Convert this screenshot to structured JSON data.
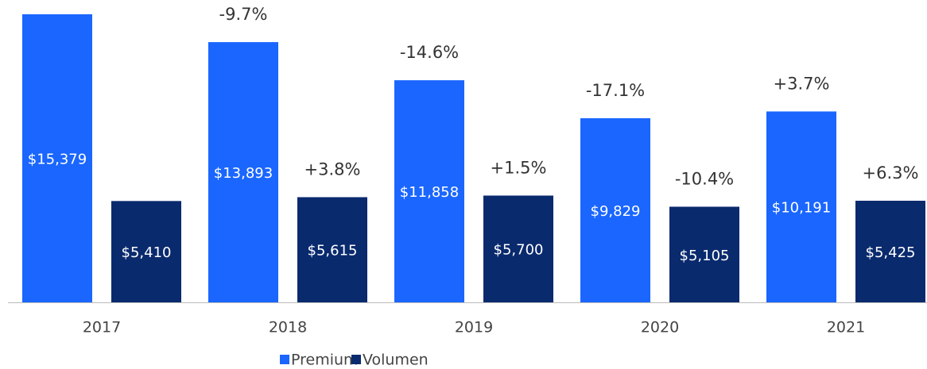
{
  "chart_data": {
    "type": "bar",
    "categories": [
      "2017",
      "2018",
      "2019",
      "2020",
      "2021"
    ],
    "series": [
      {
        "name": "Premium",
        "color": "#1a66ff",
        "values": [
          15379,
          13893,
          11858,
          9829,
          10191
        ],
        "value_labels": [
          "$15,379",
          "$13,893",
          "$11,858",
          "$9,829",
          "$10,191"
        ],
        "change_labels": [
          null,
          "-9.7%",
          "-14.6%",
          "-17.1%",
          "+3.7%"
        ]
      },
      {
        "name": "Volumen",
        "color": "#0a2a6e",
        "values": [
          5410,
          5615,
          5700,
          5105,
          5425
        ],
        "value_labels": [
          "$5,410",
          "$5,615",
          "$5,700",
          "$5,105",
          "$5,425"
        ],
        "change_labels": [
          null,
          "+3.8%",
          "+1.5%",
          "-10.4%",
          "+6.3%"
        ]
      }
    ]
  }
}
